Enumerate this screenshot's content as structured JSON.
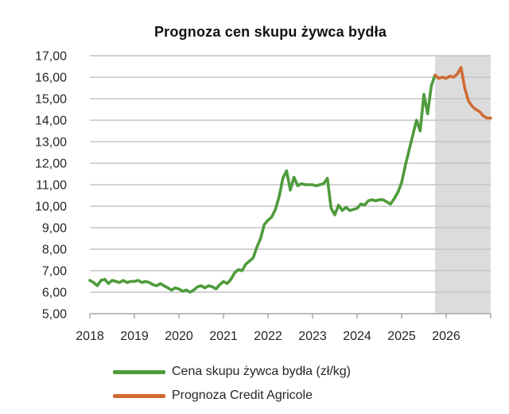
{
  "chart_data": {
    "type": "line",
    "title": "Prognoza cen skupu żywca bydła",
    "xlabel": "",
    "ylabel": "",
    "xlim": [
      2018,
      2027
    ],
    "ylim": [
      5,
      17
    ],
    "y_tick_step": 1,
    "y_tick_labels": [
      "5,00",
      "6,00",
      "7,00",
      "8,00",
      "9,00",
      "10,00",
      "11,00",
      "12,00",
      "13,00",
      "14,00",
      "15,00",
      "16,00",
      "17,00"
    ],
    "x_ticks": [
      2018,
      2019,
      2020,
      2021,
      2022,
      2023,
      2024,
      2025,
      2026
    ],
    "grid": "horizontal",
    "legend_position": "bottom",
    "forecast_band": {
      "x_start": 2025.75,
      "x_end": 2027,
      "color": "#dcdcdc"
    },
    "colors": {
      "gridline": "#c3c3c3",
      "axis": "#a6a6a6",
      "text": "#262626",
      "title": "#111111"
    },
    "series": [
      {
        "name": "Cena skupu żywca bydła (zł/kg)",
        "color": "#4e9b3c",
        "x_start": 2018.0,
        "x_step_months": 1,
        "values": [
          6.55,
          6.45,
          6.3,
          6.55,
          6.6,
          6.4,
          6.55,
          6.5,
          6.45,
          6.55,
          6.45,
          6.5,
          6.5,
          6.55,
          6.45,
          6.5,
          6.45,
          6.35,
          6.3,
          6.4,
          6.3,
          6.2,
          6.1,
          6.2,
          6.15,
          6.05,
          6.1,
          6.0,
          6.1,
          6.25,
          6.3,
          6.2,
          6.3,
          6.25,
          6.15,
          6.35,
          6.5,
          6.4,
          6.6,
          6.9,
          7.05,
          7.0,
          7.3,
          7.45,
          7.6,
          8.1,
          8.5,
          9.15,
          9.35,
          9.5,
          9.85,
          10.45,
          11.3,
          11.65,
          10.75,
          11.35,
          10.95,
          11.05,
          11.0,
          11.0,
          11.0,
          10.95,
          11.0,
          11.05,
          11.3,
          9.9,
          9.6,
          10.05,
          9.8,
          9.95,
          9.8,
          9.85,
          9.9,
          10.1,
          10.05,
          10.25,
          10.3,
          10.25,
          10.3,
          10.3,
          10.2,
          10.1,
          10.35,
          10.65,
          11.1,
          11.9,
          12.6,
          13.3,
          14.0,
          13.5,
          15.2,
          14.3,
          15.6,
          16.1
        ]
      },
      {
        "name": "Prognoza Credit Agricole",
        "color": "#d06b33",
        "x_start": 2025.75,
        "x_step_months": 1,
        "values": [
          16.1,
          15.95,
          16.0,
          15.95,
          16.05,
          16.0,
          16.15,
          16.45,
          15.5,
          14.9,
          14.65,
          14.5,
          14.4,
          14.2,
          14.1,
          14.1
        ]
      }
    ]
  }
}
